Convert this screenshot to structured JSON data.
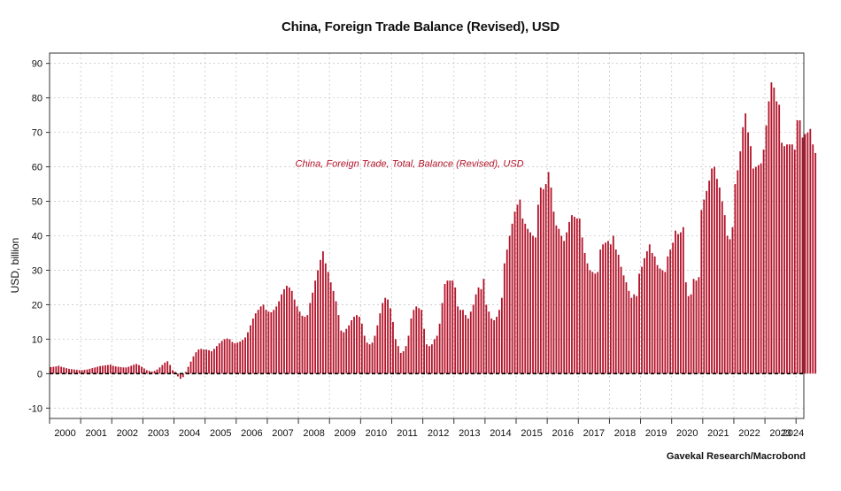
{
  "title": "China, Foreign Trade Balance (Revised), USD",
  "source": "Gavekal Research/Macrobond",
  "colors": {
    "bar": "#b3142a",
    "grid": "#c8c8c8",
    "axis": "#333333",
    "zero_line": "#000000"
  },
  "chart_data": {
    "type": "bar",
    "title": "China, Foreign Trade Balance (Revised), USD",
    "ylabel": "USD, billion",
    "xlabel": "",
    "ylim": [
      -13,
      93
    ],
    "yticks": [
      -10,
      0,
      10,
      20,
      30,
      40,
      50,
      60,
      70,
      80,
      90
    ],
    "xlim": [
      2000.0,
      2024.25
    ],
    "xticks": [
      "2000",
      "2001",
      "2002",
      "2003",
      "2004",
      "2005",
      "2006",
      "2007",
      "2008",
      "2009",
      "2010",
      "2011",
      "2012",
      "2013",
      "2014",
      "2015",
      "2016",
      "2017",
      "2018",
      "2019",
      "2020",
      "2021",
      "2022",
      "2023",
      "2024"
    ],
    "grid": true,
    "frequency": "monthly",
    "start": "2000-01",
    "series": [
      {
        "name": "China, Foreign Trade, Total, Balance (Revised), USD",
        "values": [
          1.9,
          2.0,
          2.1,
          2.3,
          2.0,
          1.8,
          1.6,
          1.4,
          1.3,
          1.2,
          1.1,
          1.0,
          1.0,
          1.1,
          1.2,
          1.4,
          1.6,
          1.8,
          2.0,
          2.2,
          2.3,
          2.4,
          2.5,
          2.6,
          2.3,
          2.1,
          2.0,
          1.9,
          1.8,
          1.8,
          2.0,
          2.3,
          2.6,
          2.8,
          2.5,
          2.0,
          1.5,
          1.0,
          0.8,
          0.6,
          0.8,
          1.2,
          1.8,
          2.5,
          3.2,
          3.6,
          2.5,
          1.0,
          0.5,
          -0.8,
          -1.5,
          -1.0,
          0.5,
          2.0,
          3.5,
          5.0,
          6.2,
          7.0,
          7.2,
          7.0,
          7.0,
          6.8,
          6.5,
          7.2,
          8.0,
          8.8,
          9.5,
          10.0,
          10.2,
          10.0,
          9.2,
          8.8,
          9.0,
          9.3,
          9.8,
          10.5,
          12.0,
          14.0,
          16.0,
          17.5,
          18.5,
          19.5,
          20.0,
          18.5,
          18.0,
          17.8,
          18.5,
          19.5,
          21.0,
          23.0,
          24.5,
          25.5,
          25.0,
          24.0,
          21.5,
          19.5,
          18.0,
          16.8,
          16.5,
          17.0,
          20.5,
          23.5,
          27.0,
          30.0,
          33.0,
          35.5,
          32.0,
          29.5,
          26.5,
          24.0,
          21.0,
          17.0,
          12.5,
          12.0,
          13.0,
          14.0,
          15.5,
          16.5,
          17.0,
          16.5,
          14.5,
          11.0,
          9.0,
          8.5,
          9.0,
          11.0,
          14.0,
          17.5,
          20.5,
          22.0,
          21.5,
          19.0,
          15.0,
          10.0,
          8.0,
          6.0,
          6.5,
          8.0,
          11.0,
          16.0,
          18.5,
          19.5,
          19.0,
          18.5,
          13.0,
          8.5,
          8.0,
          8.5,
          10.0,
          11.0,
          14.5,
          20.5,
          26.0,
          27.0,
          27.0,
          27.0,
          25.0,
          19.5,
          18.5,
          18.5,
          17.0,
          16.0,
          18.0,
          20.0,
          23.0,
          25.0,
          24.5,
          27.5,
          20.0,
          18.0,
          16.0,
          15.5,
          16.5,
          18.5,
          22.0,
          32.0,
          36.0,
          40.0,
          43.5,
          47.0,
          49.0,
          50.5,
          45.0,
          43.5,
          42.0,
          41.0,
          40.0,
          39.5,
          49.0,
          54.0,
          53.5,
          55.0,
          58.5,
          54.0,
          47.0,
          43.0,
          42.0,
          40.0,
          38.5,
          41.0,
          44.0,
          46.0,
          45.5,
          45.0,
          45.0,
          39.5,
          35.0,
          32.0,
          30.0,
          29.5,
          29.0,
          29.5,
          36.0,
          37.5,
          38.0,
          38.5,
          37.5,
          40.0,
          36.0,
          34.5,
          31.0,
          28.5,
          26.5,
          24.0,
          22.0,
          23.0,
          22.5,
          29.0,
          31.0,
          33.5,
          35.5,
          37.5,
          35.0,
          34.0,
          31.5,
          30.5,
          30.0,
          29.5,
          34.0,
          36.0,
          38.0,
          41.5,
          40.5,
          41.0,
          42.5,
          26.5,
          22.5,
          23.0,
          27.5,
          27.0,
          28.0,
          47.5,
          50.5,
          53.0,
          56.0,
          59.5,
          60.0,
          56.5,
          54.0,
          50.0,
          46.0,
          40.0,
          39.0,
          42.5,
          55.0,
          59.0,
          64.5,
          71.5,
          75.5,
          70.0,
          66.0,
          59.5,
          60.0,
          60.5,
          61.0,
          65.0,
          72.0,
          79.0,
          84.5,
          83.0,
          79.0,
          78.0,
          67.0,
          66.0,
          66.5,
          66.5,
          66.5,
          65.0,
          73.5,
          73.5,
          68.5,
          69.5,
          70.0,
          71.0,
          66.5,
          64.0
        ]
      }
    ],
    "annotations": [
      "China, Foreign Trade, Total, Balance (Revised), USD"
    ]
  }
}
